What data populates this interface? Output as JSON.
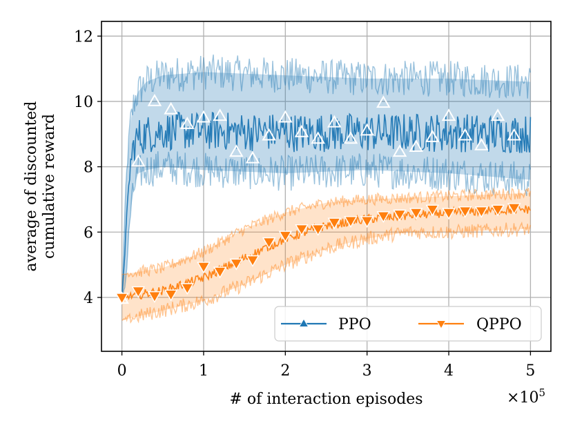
{
  "chart_data": {
    "type": "line",
    "title": "",
    "xlabel": "# of interaction episodes",
    "ylabel_lines": [
      "average of discounted",
      "cumulative reward"
    ],
    "x_multiplier_label": "×10",
    "x_multiplier_exp": "5",
    "xlim": [
      -0.25,
      5.25
    ],
    "ylim": [
      2.35,
      12.45
    ],
    "xticks": [
      0,
      1,
      2,
      3,
      4,
      5
    ],
    "xtick_labels": [
      "0",
      "1",
      "2",
      "3",
      "4",
      "5"
    ],
    "yticks": [
      4,
      6,
      8,
      10,
      12
    ],
    "ytick_labels": [
      "4",
      "6",
      "8",
      "10",
      "12"
    ],
    "grid": true,
    "legend_position": "lower-right",
    "series": [
      {
        "name": "PPO",
        "color": "#1f77b4",
        "marker": "triangle-up",
        "x": [
          0,
          0.2,
          0.4,
          0.6,
          0.8,
          1.0,
          1.2,
          1.4,
          1.6,
          1.8,
          2.0,
          2.2,
          2.4,
          2.6,
          2.8,
          3.0,
          3.2,
          3.4,
          3.6,
          3.8,
          4.0,
          4.2,
          4.4,
          4.6,
          4.8
        ],
        "values": [
          3.95,
          8.15,
          10.0,
          9.75,
          9.3,
          9.5,
          9.55,
          8.45,
          8.25,
          8.95,
          9.5,
          9.05,
          8.85,
          9.35,
          8.85,
          9.1,
          9.95,
          8.45,
          8.6,
          8.9,
          9.55,
          8.95,
          8.65,
          9.55,
          8.95
        ],
        "band_x": [
          0,
          0.05,
          0.1,
          0.15,
          0.2,
          0.3,
          0.5,
          1.0,
          2.0,
          3.0,
          4.0,
          5.0
        ],
        "band_mean": [
          3.95,
          6.0,
          8.0,
          8.7,
          8.9,
          9.0,
          9.1,
          9.1,
          9.05,
          9.05,
          9.05,
          9.0
        ],
        "band_low": [
          3.9,
          4.6,
          6.5,
          7.4,
          7.8,
          7.9,
          8.0,
          7.9,
          7.8,
          7.9,
          7.8,
          7.6
        ],
        "band_high": [
          4.0,
          7.5,
          9.3,
          10.0,
          10.3,
          10.6,
          10.8,
          10.9,
          10.8,
          10.7,
          10.7,
          10.6
        ]
      },
      {
        "name": "QPPO",
        "color": "#ff7f0e",
        "marker": "triangle-down",
        "x": [
          0,
          0.2,
          0.4,
          0.6,
          0.8,
          1.0,
          1.2,
          1.4,
          1.6,
          1.8,
          2.0,
          2.2,
          2.4,
          2.6,
          2.8,
          3.0,
          3.2,
          3.4,
          3.6,
          3.8,
          4.0,
          4.2,
          4.4,
          4.6,
          4.8
        ],
        "values": [
          4.0,
          4.2,
          4.05,
          4.1,
          4.3,
          4.95,
          4.8,
          5.05,
          5.15,
          5.7,
          5.9,
          6.1,
          6.1,
          6.3,
          6.35,
          6.35,
          6.5,
          6.55,
          6.6,
          6.7,
          6.6,
          6.65,
          6.65,
          6.7,
          6.75
        ],
        "band_x": [
          0,
          0.5,
          1.0,
          1.5,
          2.0,
          2.5,
          3.0,
          3.5,
          4.0,
          4.5,
          5.0
        ],
        "band_mean": [
          4.0,
          4.2,
          4.6,
          5.2,
          5.8,
          6.2,
          6.4,
          6.5,
          6.6,
          6.65,
          6.7
        ],
        "band_low": [
          3.3,
          3.6,
          3.9,
          4.4,
          5.0,
          5.5,
          5.8,
          6.0,
          6.0,
          6.05,
          6.1
        ],
        "band_high": [
          4.7,
          4.9,
          5.4,
          6.1,
          6.6,
          6.9,
          7.0,
          7.05,
          7.1,
          7.15,
          7.2
        ]
      }
    ]
  }
}
